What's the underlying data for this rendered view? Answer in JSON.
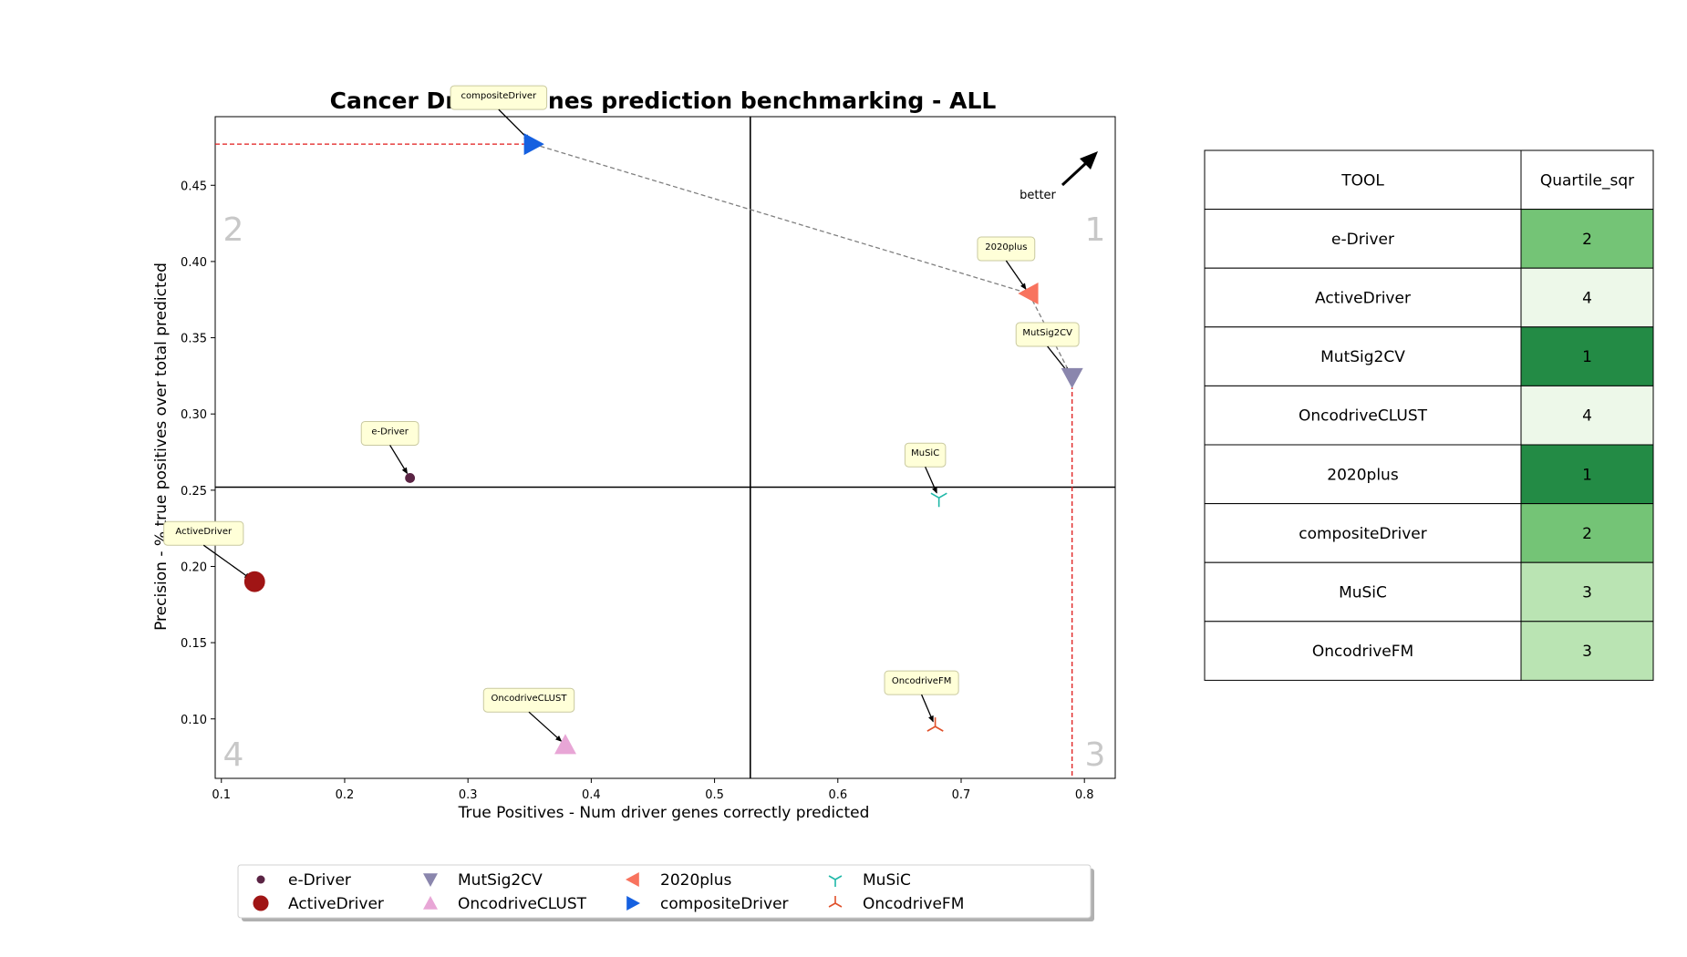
{
  "chart_data": {
    "type": "scatter",
    "title": "Cancer Driver Genes prediction benchmarking - ALL",
    "xlabel": "True Positives - Num driver genes correctly predicted",
    "ylabel": "Precision - % true positives over total predicted",
    "xlim": [
      0.095,
      0.825
    ],
    "ylim": [
      0.061,
      0.495
    ],
    "xticks": [
      "0.1",
      "0.2",
      "0.3",
      "0.4",
      "0.5",
      "0.6",
      "0.7",
      "0.8"
    ],
    "yticks": [
      "0.10",
      "0.15",
      "0.20",
      "0.25",
      "0.30",
      "0.35",
      "0.40",
      "0.45"
    ],
    "quadrant_divider": {
      "x": 0.529,
      "y": 0.252
    },
    "quadrant_labels": [
      "1",
      "2",
      "3",
      "4"
    ],
    "better_label": "better",
    "series": [
      {
        "name": "e-Driver",
        "x": 0.253,
        "y": 0.258,
        "marker": "circle-small",
        "color": "#5a2444"
      },
      {
        "name": "ActiveDriver",
        "x": 0.127,
        "y": 0.19,
        "marker": "circle-large",
        "color": "#a01515"
      },
      {
        "name": "MutSig2CV",
        "x": 0.79,
        "y": 0.324,
        "marker": "triangle-down",
        "color": "#8a86ad"
      },
      {
        "name": "OncodriveCLUST",
        "x": 0.379,
        "y": 0.083,
        "marker": "triangle-up",
        "color": "#e8a6d6"
      },
      {
        "name": "2020plus",
        "x": 0.755,
        "y": 0.379,
        "marker": "triangle-left",
        "color": "#f8735e"
      },
      {
        "name": "compositeDriver",
        "x": 0.353,
        "y": 0.477,
        "marker": "triangle-right",
        "color": "#1560e0"
      },
      {
        "name": "MuSiC",
        "x": 0.682,
        "y": 0.245,
        "marker": "tri-down",
        "color": "#20b8a8"
      },
      {
        "name": "OncodriveFM",
        "x": 0.679,
        "y": 0.095,
        "marker": "tri-up",
        "color": "#e0502a"
      }
    ],
    "pareto_frontier": [
      "compositeDriver",
      "2020plus",
      "MutSig2CV"
    ],
    "legend": {
      "placement": "bottom",
      "columns": 5
    }
  },
  "table": {
    "headers": [
      "TOOL",
      "Quartile_sqr"
    ],
    "rows": [
      {
        "tool": "e-Driver",
        "quartile": "2",
        "color": "#74c476"
      },
      {
        "tool": "ActiveDriver",
        "quartile": "4",
        "color": "#edf8e9"
      },
      {
        "tool": "MutSig2CV",
        "quartile": "1",
        "color": "#238b45"
      },
      {
        "tool": "OncodriveCLUST",
        "quartile": "4",
        "color": "#edf8e9"
      },
      {
        "tool": "2020plus",
        "quartile": "1",
        "color": "#238b45"
      },
      {
        "tool": "compositeDriver",
        "quartile": "2",
        "color": "#74c476"
      },
      {
        "tool": "MuSiC",
        "quartile": "3",
        "color": "#bae4b3"
      },
      {
        "tool": "OncodriveFM",
        "quartile": "3",
        "color": "#bae4b3"
      }
    ]
  }
}
